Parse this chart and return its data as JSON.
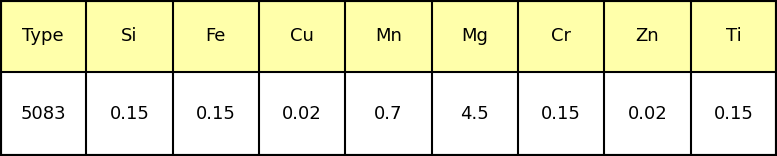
{
  "headers": [
    "Type",
    "Si",
    "Fe",
    "Cu",
    "Mn",
    "Mg",
    "Cr",
    "Zn",
    "Ti"
  ],
  "row": [
    "5083",
    "0.15",
    "0.15",
    "0.02",
    "0.7",
    "4.5",
    "0.15",
    "0.02",
    "0.15"
  ],
  "header_bg": "#FFFFAA",
  "row_bg": "#FFFFFF",
  "border_color": "#000000",
  "text_color": "#000000",
  "header_font_size": 13,
  "row_font_size": 13,
  "outer_lw": 3.0,
  "inner_lw": 1.5,
  "fig_w": 7.77,
  "fig_h": 1.56,
  "dpi": 100
}
